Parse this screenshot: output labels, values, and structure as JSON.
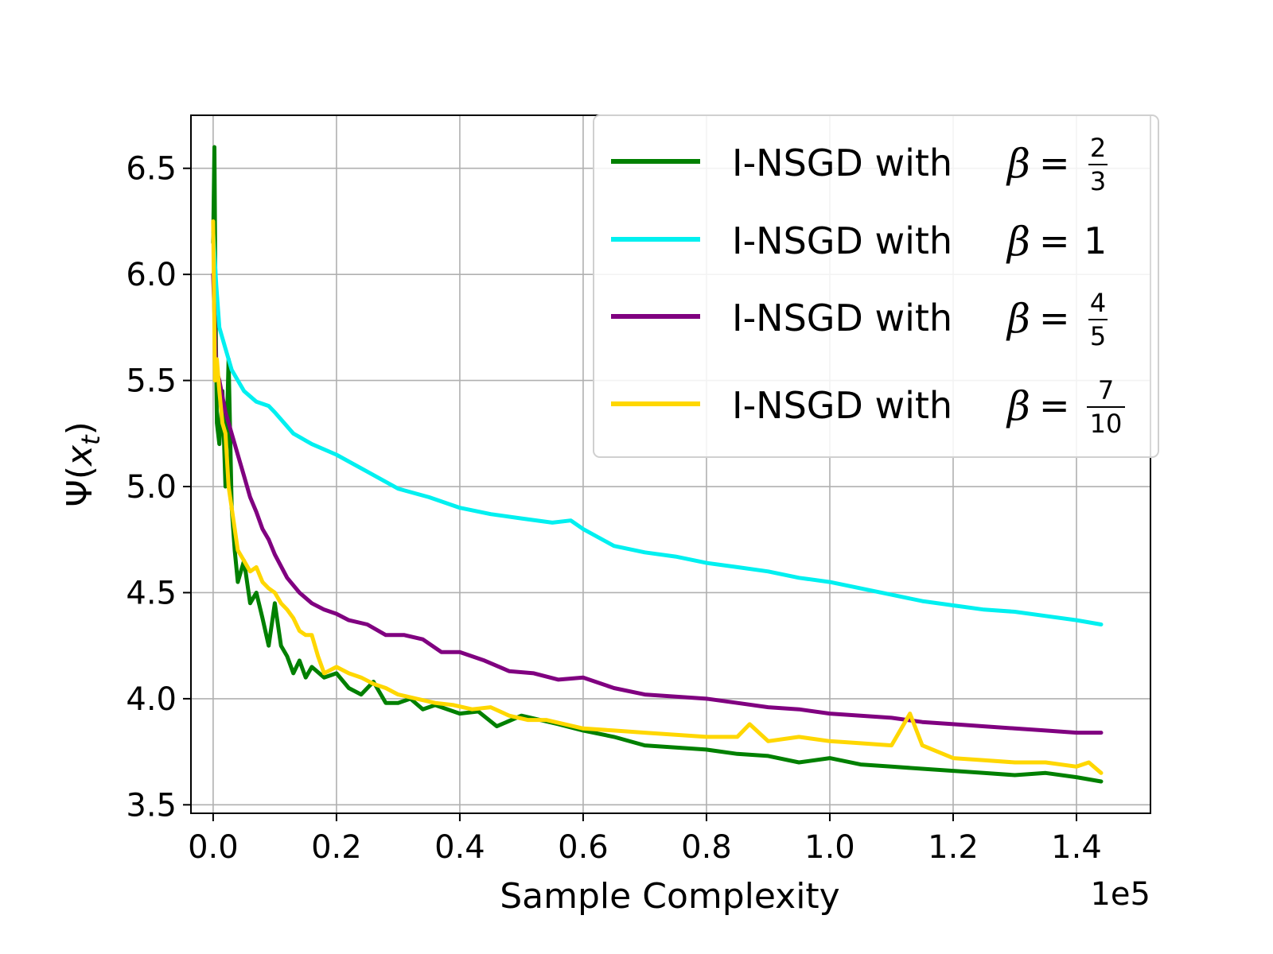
{
  "chart_data": {
    "type": "line",
    "xlabel": "Sample Complexity",
    "ylabel": "Ψ(x_t)",
    "x_offset_text": "1e5",
    "xlim": [
      -0.036,
      1.52
    ],
    "ylim": [
      3.46,
      6.75
    ],
    "xticks": [
      {
        "value": 0.0,
        "label": "0.0"
      },
      {
        "value": 0.2,
        "label": "0.2"
      },
      {
        "value": 0.4,
        "label": "0.4"
      },
      {
        "value": 0.6,
        "label": "0.6"
      },
      {
        "value": 0.8,
        "label": "0.8"
      },
      {
        "value": 1.0,
        "label": "1.0"
      },
      {
        "value": 1.2,
        "label": "1.2"
      },
      {
        "value": 1.4,
        "label": "1.4"
      }
    ],
    "yticks": [
      {
        "value": 3.5,
        "label": "3.5"
      },
      {
        "value": 4.0,
        "label": "4.0"
      },
      {
        "value": 4.5,
        "label": "4.5"
      },
      {
        "value": 5.0,
        "label": "5.0"
      },
      {
        "value": 5.5,
        "label": "5.5"
      },
      {
        "value": 6.0,
        "label": "6.0"
      },
      {
        "value": 6.5,
        "label": "6.5"
      }
    ],
    "grid": true,
    "legend_position": "top-right",
    "series": [
      {
        "name": "I-NSGD with β = 2/3",
        "legend_prefix": "I-NSGD with ",
        "beta_num": "2",
        "beta_den": "3",
        "beta_int": "",
        "color": "#008000",
        "x": [
          0.0,
          0.002,
          0.004,
          0.006,
          0.01,
          0.015,
          0.02,
          0.025,
          0.03,
          0.035,
          0.04,
          0.05,
          0.06,
          0.07,
          0.08,
          0.09,
          0.1,
          0.11,
          0.12,
          0.13,
          0.14,
          0.15,
          0.16,
          0.18,
          0.2,
          0.22,
          0.24,
          0.26,
          0.28,
          0.3,
          0.32,
          0.34,
          0.36,
          0.38,
          0.4,
          0.43,
          0.46,
          0.5,
          0.53,
          0.56,
          0.6,
          0.65,
          0.7,
          0.75,
          0.8,
          0.85,
          0.9,
          0.95,
          1.0,
          1.05,
          1.1,
          1.15,
          1.2,
          1.25,
          1.3,
          1.35,
          1.4,
          1.44
        ],
        "y": [
          6.15,
          6.6,
          5.8,
          5.3,
          5.2,
          5.45,
          5.0,
          5.6,
          4.9,
          4.7,
          4.55,
          4.65,
          4.45,
          4.5,
          4.38,
          4.25,
          4.45,
          4.25,
          4.2,
          4.12,
          4.18,
          4.1,
          4.15,
          4.1,
          4.12,
          4.05,
          4.02,
          4.08,
          3.98,
          3.98,
          4.0,
          3.95,
          3.97,
          3.95,
          3.93,
          3.94,
          3.87,
          3.92,
          3.9,
          3.88,
          3.85,
          3.82,
          3.78,
          3.77,
          3.76,
          3.74,
          3.73,
          3.7,
          3.72,
          3.69,
          3.68,
          3.67,
          3.66,
          3.65,
          3.64,
          3.65,
          3.63,
          3.61
        ]
      },
      {
        "name": "I-NSGD with β = 1",
        "legend_prefix": "I-NSGD with ",
        "beta_num": "",
        "beta_den": "",
        "beta_int": "1",
        "color": "#00f0f0",
        "x": [
          0.0,
          0.005,
          0.01,
          0.02,
          0.03,
          0.05,
          0.07,
          0.09,
          0.1,
          0.13,
          0.16,
          0.2,
          0.25,
          0.3,
          0.35,
          0.4,
          0.45,
          0.5,
          0.55,
          0.58,
          0.6,
          0.65,
          0.7,
          0.75,
          0.8,
          0.85,
          0.9,
          0.95,
          1.0,
          1.05,
          1.1,
          1.15,
          1.2,
          1.25,
          1.3,
          1.35,
          1.4,
          1.44
        ],
        "y": [
          6.2,
          5.95,
          5.75,
          5.65,
          5.55,
          5.45,
          5.4,
          5.38,
          5.35,
          5.25,
          5.2,
          5.15,
          5.07,
          4.99,
          4.95,
          4.9,
          4.87,
          4.85,
          4.83,
          4.84,
          4.8,
          4.72,
          4.69,
          4.67,
          4.64,
          4.62,
          4.6,
          4.57,
          4.55,
          4.52,
          4.49,
          4.46,
          4.44,
          4.42,
          4.41,
          4.39,
          4.37,
          4.35
        ]
      },
      {
        "name": "I-NSGD with β = 4/5",
        "legend_prefix": "I-NSGD with ",
        "beta_num": "4",
        "beta_den": "5",
        "beta_int": "",
        "color": "#800080",
        "x": [
          0.0,
          0.005,
          0.01,
          0.02,
          0.03,
          0.04,
          0.05,
          0.06,
          0.07,
          0.08,
          0.09,
          0.1,
          0.12,
          0.14,
          0.16,
          0.18,
          0.2,
          0.22,
          0.25,
          0.28,
          0.31,
          0.34,
          0.37,
          0.4,
          0.44,
          0.48,
          0.52,
          0.56,
          0.6,
          0.65,
          0.7,
          0.75,
          0.8,
          0.85,
          0.9,
          0.95,
          1.0,
          1.05,
          1.1,
          1.15,
          1.2,
          1.25,
          1.3,
          1.35,
          1.4,
          1.44
        ],
        "y": [
          6.0,
          5.55,
          5.5,
          5.35,
          5.25,
          5.15,
          5.05,
          4.95,
          4.88,
          4.8,
          4.75,
          4.68,
          4.57,
          4.5,
          4.45,
          4.42,
          4.4,
          4.37,
          4.35,
          4.3,
          4.3,
          4.28,
          4.22,
          4.22,
          4.18,
          4.13,
          4.12,
          4.09,
          4.1,
          4.05,
          4.02,
          4.01,
          4.0,
          3.98,
          3.96,
          3.95,
          3.93,
          3.92,
          3.91,
          3.89,
          3.88,
          3.87,
          3.86,
          3.85,
          3.84,
          3.84
        ]
      },
      {
        "name": "I-NSGD with β = 7/10",
        "legend_prefix": "I-NSGD with ",
        "beta_num": "7",
        "beta_den": "10",
        "beta_int": "",
        "color": "#ffd700",
        "x": [
          0.0,
          0.003,
          0.006,
          0.01,
          0.015,
          0.02,
          0.025,
          0.03,
          0.04,
          0.05,
          0.06,
          0.07,
          0.08,
          0.09,
          0.1,
          0.11,
          0.12,
          0.13,
          0.14,
          0.15,
          0.16,
          0.17,
          0.18,
          0.2,
          0.22,
          0.24,
          0.26,
          0.28,
          0.3,
          0.33,
          0.36,
          0.39,
          0.42,
          0.45,
          0.48,
          0.51,
          0.54,
          0.57,
          0.6,
          0.65,
          0.7,
          0.75,
          0.8,
          0.85,
          0.87,
          0.9,
          0.95,
          1.0,
          1.05,
          1.1,
          1.13,
          1.15,
          1.2,
          1.25,
          1.3,
          1.35,
          1.4,
          1.42,
          1.44
        ],
        "y": [
          6.25,
          5.5,
          5.6,
          5.45,
          5.3,
          5.25,
          5.0,
          4.9,
          4.7,
          4.65,
          4.6,
          4.62,
          4.55,
          4.52,
          4.5,
          4.45,
          4.42,
          4.38,
          4.32,
          4.3,
          4.3,
          4.2,
          4.12,
          4.15,
          4.12,
          4.1,
          4.07,
          4.05,
          4.02,
          4.0,
          3.98,
          3.97,
          3.95,
          3.96,
          3.92,
          3.9,
          3.9,
          3.88,
          3.86,
          3.85,
          3.84,
          3.83,
          3.82,
          3.82,
          3.88,
          3.8,
          3.82,
          3.8,
          3.79,
          3.78,
          3.93,
          3.78,
          3.72,
          3.71,
          3.7,
          3.7,
          3.68,
          3.7,
          3.65
        ]
      }
    ]
  }
}
